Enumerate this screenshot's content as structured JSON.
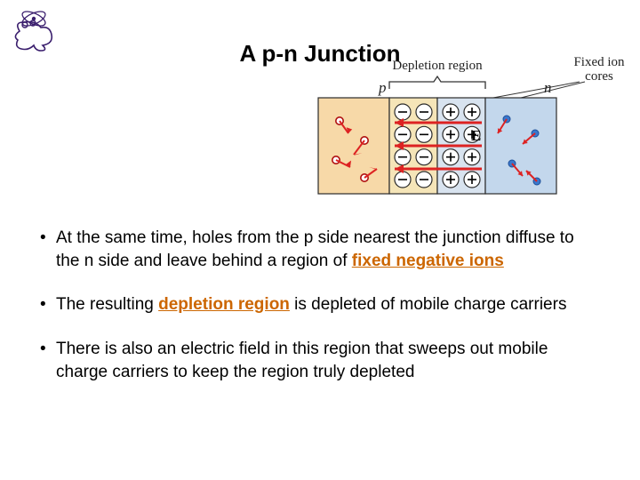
{
  "title": "A p-n Junction",
  "logo": {
    "stroke": "#3a1e6d",
    "accent": "#5a3a9a"
  },
  "diagram": {
    "label_depletion": "Depletion region",
    "label_fixed": "Fixed ion",
    "label_cores": "cores",
    "p_label": "p",
    "n_label": "n",
    "E_label": "E",
    "colors": {
      "p_bg": "#f7d9a8",
      "dep_left_bg": "#f5e5b8",
      "dep_right_bg": "#d8e3ef",
      "n_bg": "#c3d7ec",
      "border": "#2b2b2b",
      "hole": "#e03a3a",
      "hole_stroke": "#b01010",
      "electron": "#3a77cc",
      "electron_stroke": "#1e4f99",
      "neg_ion_fill": "#ffffff",
      "neg_ion_stroke": "#2b2b2b",
      "pos_ion_fill": "#ffffff",
      "pos_ion_stroke": "#2b2b2b",
      "arrow_red": "#d22",
      "bracket": "#333",
      "callout": "#333",
      "label_serif": "#222"
    },
    "neg_ion_cols": [
      0,
      1
    ],
    "pos_ion_cols": [
      0,
      1
    ],
    "ion_rows": 4
  },
  "bullets": [
    {
      "parts": [
        {
          "t": "At the same time, holes from the p side nearest the junction diffuse to the n side and leave behind a region of "
        },
        {
          "t": "fixed negative ions",
          "accent": true,
          "ul": true
        }
      ]
    },
    {
      "parts": [
        {
          "t": "The resulting "
        },
        {
          "t": "depletion region",
          "accent": true,
          "ul": true
        },
        {
          "t": " is depleted of mobile charge carriers"
        }
      ]
    },
    {
      "parts": [
        {
          "t": "There is also an electric field in this region that sweeps out mobile charge carriers to keep the region truly depleted"
        }
      ]
    }
  ]
}
